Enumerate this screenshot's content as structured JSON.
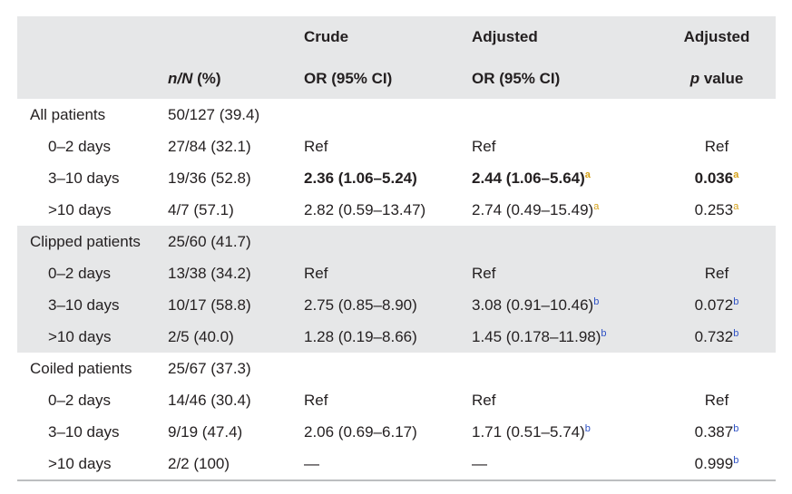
{
  "header": {
    "row1": {
      "col0": "",
      "col1": "",
      "col2": "Crude",
      "col3": "Adjusted",
      "col4": "Adjusted"
    },
    "row2": {
      "col0": "",
      "col1_italic": "n/N",
      "col1_rest": " (%)",
      "col2": "OR (95% CI)",
      "col3": "OR (95% CI)",
      "col4_italic": "p",
      "col4_rest": " value"
    }
  },
  "groups": [
    {
      "label": "All patients",
      "count": "50/127 (39.4)",
      "rows": [
        {
          "label": "0–2 days",
          "count": "27/84 (32.1)",
          "crude": "Ref",
          "adjusted": "Ref",
          "adj_sup": "",
          "p": "Ref",
          "p_sup": "",
          "bold": false
        },
        {
          "label": "3–10 days",
          "count": "19/36 (52.8)",
          "crude": "2.36 (1.06–5.24)",
          "adjusted": "2.44 (1.06–5.64)",
          "adj_sup": "a",
          "p": "0.036",
          "p_sup": "a",
          "bold": true
        },
        {
          "label": ">10 days",
          "count": "4/7 (57.1)",
          "crude": "2.82 (0.59–13.47)",
          "adjusted": "2.74 (0.49–15.49)",
          "adj_sup": "a",
          "p": "0.253",
          "p_sup": "a",
          "bold": false
        }
      ]
    },
    {
      "label": "Clipped patients",
      "count": "25/60 (41.7)",
      "rows": [
        {
          "label": "0–2 days",
          "count": "13/38 (34.2)",
          "crude": "Ref",
          "adjusted": "Ref",
          "adj_sup": "",
          "p": "Ref",
          "p_sup": "",
          "bold": false
        },
        {
          "label": "3–10 days",
          "count": "10/17 (58.8)",
          "crude": "2.75 (0.85–8.90)",
          "adjusted": "3.08 (0.91–10.46)",
          "adj_sup": "b",
          "p": "0.072",
          "p_sup": "b",
          "bold": false
        },
        {
          "label": ">10 days",
          "count": "2/5 (40.0)",
          "crude": "1.28 (0.19–8.66)",
          "adjusted": "1.45 (0.178–11.98)",
          "adj_sup": "b",
          "p": "0.732",
          "p_sup": "b",
          "bold": false
        }
      ]
    },
    {
      "label": "Coiled patients",
      "count": "25/67 (37.3)",
      "rows": [
        {
          "label": "0–2 days",
          "count": "14/46 (30.4)",
          "crude": "Ref",
          "adjusted": "Ref",
          "adj_sup": "",
          "p": "Ref",
          "p_sup": "",
          "bold": false
        },
        {
          "label": "3–10 days",
          "count": "9/19 (47.4)",
          "crude": "2.06 (0.69–6.17)",
          "adjusted": "1.71 (0.51–5.74)",
          "adj_sup": "b",
          "p": "0.387",
          "p_sup": "b",
          "bold": false
        },
        {
          "label": ">10 days",
          "count": "2/2 (100)",
          "crude": "—",
          "adjusted": "—",
          "adj_sup": "",
          "p": "0.999",
          "p_sup": "b",
          "bold": false
        }
      ]
    }
  ]
}
